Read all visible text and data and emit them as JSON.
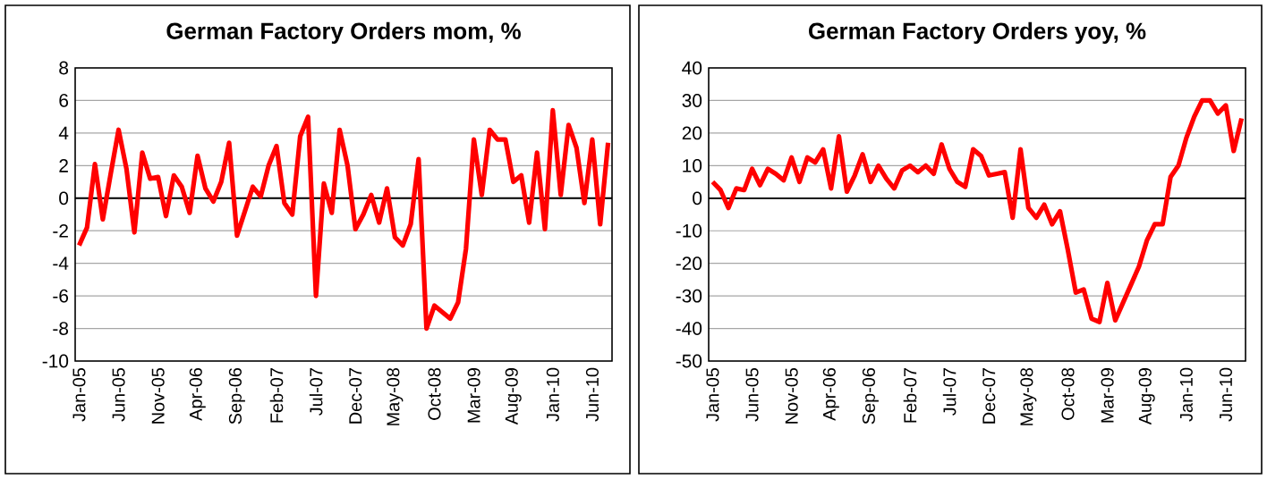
{
  "chart_data": [
    {
      "type": "line",
      "title": "German Factory Orders mom, %",
      "grid": "y",
      "marker": "none",
      "line_style": "solid",
      "categories": [
        "Jan-05",
        null,
        null,
        null,
        null,
        "Jun-05",
        null,
        null,
        null,
        null,
        "Nov-05",
        null,
        null,
        null,
        null,
        "Apr-06",
        null,
        null,
        null,
        null,
        "Sep-06",
        null,
        null,
        null,
        null,
        "Feb-07",
        null,
        null,
        null,
        null,
        "Jul-07",
        null,
        null,
        null,
        null,
        "Dec-07",
        null,
        null,
        null,
        null,
        "May-08",
        null,
        null,
        null,
        null,
        "Oct-08",
        null,
        null,
        null,
        null,
        "Mar-09",
        null,
        null,
        null,
        null,
        "Aug-09",
        null,
        null,
        null,
        null,
        "Jan-10",
        null,
        null,
        null,
        null,
        "Jun-10",
        null,
        null
      ],
      "series": [
        {
          "color": "#ff0000",
          "values": [
            -2.9,
            -1.8,
            2.1,
            -1.3,
            1.5,
            4.2,
            1.8,
            -2.1,
            2.8,
            1.2,
            1.3,
            -1.1,
            1.4,
            0.7,
            -0.9,
            2.6,
            0.6,
            -0.2,
            1.0,
            3.4,
            -2.3,
            -0.8,
            0.7,
            0.1,
            2.0,
            3.2,
            -0.3,
            -1.0,
            3.8,
            5.0,
            -6.0,
            0.9,
            -0.9,
            4.2,
            2.0,
            -1.9,
            -1.0,
            0.2,
            -1.5,
            0.6,
            -2.4,
            -2.9,
            -1.6,
            2.4,
            -8.0,
            -6.6,
            -7.0,
            -7.4,
            -6.4,
            -3.1,
            3.6,
            0.2,
            4.2,
            3.6,
            3.6,
            1.0,
            1.4,
            -1.5,
            2.8,
            -1.9,
            5.4,
            0.2,
            4.5,
            3.1,
            -0.3,
            3.6,
            -1.6,
            3.4
          ]
        }
      ],
      "ylim": [
        -10,
        8
      ],
      "yticks": [
        -10,
        -8,
        -6,
        -4,
        -2,
        0,
        2,
        4,
        6,
        8
      ]
    },
    {
      "type": "line",
      "title": "German Factory Orders yoy, %",
      "grid": "y",
      "marker": "none",
      "line_style": "solid",
      "categories": [
        "Jan-05",
        null,
        null,
        null,
        null,
        "Jun-05",
        null,
        null,
        null,
        null,
        "Nov-05",
        null,
        null,
        null,
        null,
        "Apr-06",
        null,
        null,
        null,
        null,
        "Sep-06",
        null,
        null,
        null,
        null,
        "Feb-07",
        null,
        null,
        null,
        null,
        "Jul-07",
        null,
        null,
        null,
        null,
        "Dec-07",
        null,
        null,
        null,
        null,
        "May-08",
        null,
        null,
        null,
        null,
        "Oct-08",
        null,
        null,
        null,
        null,
        "Mar-09",
        null,
        null,
        null,
        null,
        "Aug-09",
        null,
        null,
        null,
        null,
        "Jan-10",
        null,
        null,
        null,
        null,
        "Jun-10",
        null,
        null
      ],
      "series": [
        {
          "color": "#ff0000",
          "values": [
            5,
            2.5,
            -3,
            3,
            2.5,
            9,
            4,
            9,
            7.5,
            5.5,
            12.5,
            5,
            12.5,
            11,
            15,
            3,
            19,
            2,
            7,
            13.5,
            5,
            10,
            6,
            3,
            8.5,
            10,
            8,
            10,
            7.5,
            16.5,
            9,
            5,
            3.5,
            15,
            13,
            7,
            7.5,
            8,
            -6,
            15,
            -3,
            -6,
            -2,
            -8,
            -4,
            -16,
            -29,
            -28,
            -37,
            -38,
            -26,
            -37.5,
            -32,
            -26.5,
            -21,
            -13,
            -8,
            -8,
            6.5,
            10,
            18.5,
            25,
            30,
            30,
            26,
            28.5,
            14.5,
            24.5
          ]
        }
      ],
      "ylim": [
        -50,
        40
      ],
      "yticks": [
        -50,
        -40,
        -30,
        -20,
        -10,
        0,
        10,
        20,
        30,
        40
      ]
    }
  ]
}
